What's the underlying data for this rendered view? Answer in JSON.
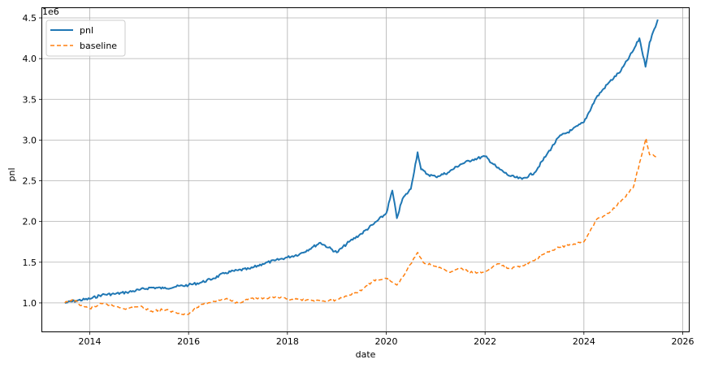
{
  "chart_data": {
    "type": "line",
    "xlabel": "date",
    "ylabel": "pnl",
    "y_offset_text": "1e6",
    "x_ticks": [
      "2014",
      "2016",
      "2018",
      "2020",
      "2022",
      "2024",
      "2026"
    ],
    "y_ticks": [
      "1.0",
      "1.5",
      "2.0",
      "2.5",
      "3.0",
      "3.5",
      "4.0",
      "4.5"
    ],
    "xlim": [
      "2013-01-15",
      "2026-02-15"
    ],
    "ylim": [
      0.65,
      4.62
    ],
    "grid": true,
    "legend_position": "top-left",
    "series": [
      {
        "name": "pnl",
        "color": "#1f77b4",
        "style": "solid",
        "points": [
          [
            "2013-07-01",
            1.0
          ],
          [
            "2013-10-01",
            1.03
          ],
          [
            "2014-01-01",
            1.05
          ],
          [
            "2014-04-01",
            1.1
          ],
          [
            "2014-07-01",
            1.11
          ],
          [
            "2014-10-01",
            1.13
          ],
          [
            "2015-01-01",
            1.16
          ],
          [
            "2015-04-01",
            1.19
          ],
          [
            "2015-07-01",
            1.18
          ],
          [
            "2015-10-01",
            1.2
          ],
          [
            "2016-01-01",
            1.22
          ],
          [
            "2016-04-01",
            1.25
          ],
          [
            "2016-07-01",
            1.3
          ],
          [
            "2016-10-01",
            1.37
          ],
          [
            "2017-01-01",
            1.4
          ],
          [
            "2017-04-01",
            1.42
          ],
          [
            "2017-07-01",
            1.48
          ],
          [
            "2017-10-01",
            1.52
          ],
          [
            "2018-01-01",
            1.56
          ],
          [
            "2018-04-01",
            1.6
          ],
          [
            "2018-07-01",
            1.68
          ],
          [
            "2018-09-01",
            1.74
          ],
          [
            "2018-11-01",
            1.68
          ],
          [
            "2019-01-01",
            1.62
          ],
          [
            "2019-04-01",
            1.75
          ],
          [
            "2019-07-01",
            1.85
          ],
          [
            "2019-10-01",
            1.97
          ],
          [
            "2020-01-01",
            2.1
          ],
          [
            "2020-02-15",
            2.38
          ],
          [
            "2020-03-20",
            2.04
          ],
          [
            "2020-05-01",
            2.28
          ],
          [
            "2020-07-01",
            2.4
          ],
          [
            "2020-08-20",
            2.85
          ],
          [
            "2020-09-15",
            2.64
          ],
          [
            "2020-11-01",
            2.58
          ],
          [
            "2021-01-01",
            2.55
          ],
          [
            "2021-04-01",
            2.6
          ],
          [
            "2021-07-01",
            2.7
          ],
          [
            "2021-10-01",
            2.76
          ],
          [
            "2022-01-01",
            2.8
          ],
          [
            "2022-04-01",
            2.66
          ],
          [
            "2022-07-01",
            2.56
          ],
          [
            "2022-10-01",
            2.52
          ],
          [
            "2023-01-01",
            2.6
          ],
          [
            "2023-04-01",
            2.82
          ],
          [
            "2023-07-01",
            3.04
          ],
          [
            "2023-10-01",
            3.12
          ],
          [
            "2024-01-01",
            3.22
          ],
          [
            "2024-04-01",
            3.52
          ],
          [
            "2024-07-01",
            3.7
          ],
          [
            "2024-10-01",
            3.85
          ],
          [
            "2025-01-01",
            4.1
          ],
          [
            "2025-02-15",
            4.25
          ],
          [
            "2025-04-01",
            3.9
          ],
          [
            "2025-05-01",
            4.2
          ],
          [
            "2025-07-01",
            4.48
          ]
        ]
      },
      {
        "name": "baseline",
        "color": "#ff7f0e",
        "style": "dashed",
        "points": [
          [
            "2013-07-01",
            1.0
          ],
          [
            "2013-09-01",
            1.04
          ],
          [
            "2013-11-01",
            0.97
          ],
          [
            "2014-01-01",
            0.93
          ],
          [
            "2014-04-01",
            0.99
          ],
          [
            "2014-07-01",
            0.96
          ],
          [
            "2014-10-01",
            0.93
          ],
          [
            "2015-01-01",
            0.96
          ],
          [
            "2015-04-01",
            0.9
          ],
          [
            "2015-07-01",
            0.92
          ],
          [
            "2015-10-01",
            0.88
          ],
          [
            "2016-01-01",
            0.86
          ],
          [
            "2016-04-01",
            0.98
          ],
          [
            "2016-07-01",
            1.02
          ],
          [
            "2016-10-01",
            1.05
          ],
          [
            "2017-01-01",
            1.0
          ],
          [
            "2017-04-01",
            1.06
          ],
          [
            "2017-07-01",
            1.05
          ],
          [
            "2017-10-01",
            1.07
          ],
          [
            "2018-01-01",
            1.05
          ],
          [
            "2018-04-01",
            1.04
          ],
          [
            "2018-07-01",
            1.03
          ],
          [
            "2018-10-01",
            1.02
          ],
          [
            "2019-01-01",
            1.04
          ],
          [
            "2019-04-01",
            1.1
          ],
          [
            "2019-07-01",
            1.15
          ],
          [
            "2019-10-01",
            1.28
          ],
          [
            "2020-01-01",
            1.3
          ],
          [
            "2020-03-20",
            1.22
          ],
          [
            "2020-06-01",
            1.4
          ],
          [
            "2020-08-20",
            1.62
          ],
          [
            "2020-10-01",
            1.5
          ],
          [
            "2021-01-01",
            1.45
          ],
          [
            "2021-04-01",
            1.38
          ],
          [
            "2021-07-01",
            1.42
          ],
          [
            "2021-10-01",
            1.37
          ],
          [
            "2022-01-01",
            1.38
          ],
          [
            "2022-04-01",
            1.48
          ],
          [
            "2022-07-01",
            1.42
          ],
          [
            "2022-10-01",
            1.46
          ],
          [
            "2023-01-01",
            1.52
          ],
          [
            "2023-04-01",
            1.62
          ],
          [
            "2023-07-01",
            1.68
          ],
          [
            "2023-10-01",
            1.72
          ],
          [
            "2024-01-01",
            1.75
          ],
          [
            "2024-04-01",
            2.02
          ],
          [
            "2024-07-01",
            2.1
          ],
          [
            "2024-10-01",
            2.25
          ],
          [
            "2025-01-01",
            2.42
          ],
          [
            "2025-03-15",
            2.88
          ],
          [
            "2025-04-05",
            3.02
          ],
          [
            "2025-05-01",
            2.82
          ],
          [
            "2025-07-01",
            2.8
          ]
        ]
      }
    ]
  }
}
